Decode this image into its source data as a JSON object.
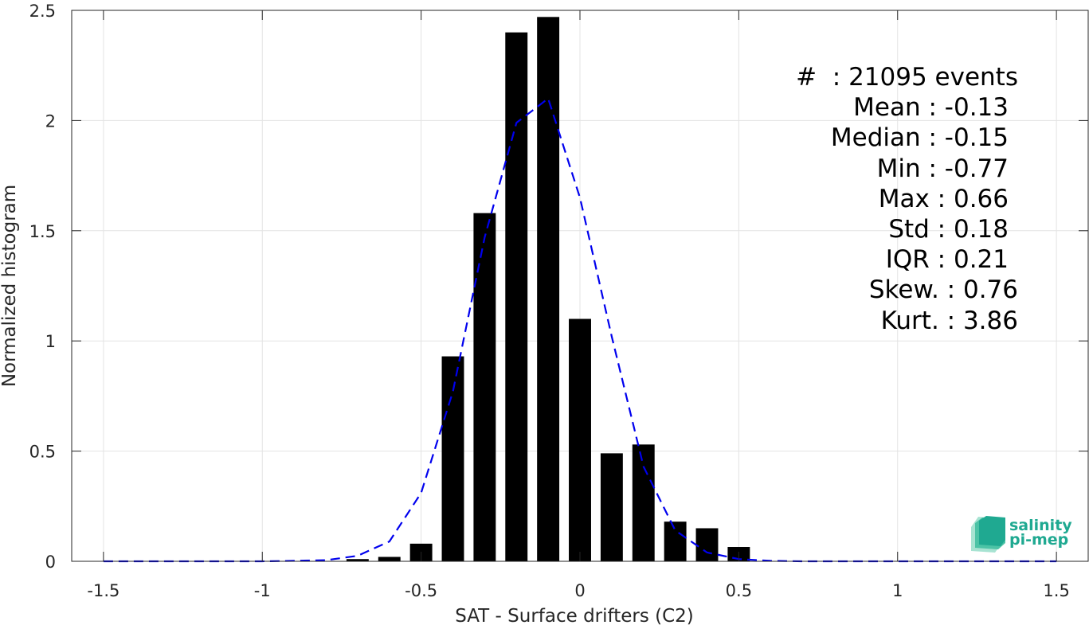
{
  "chart_data": {
    "type": "bar",
    "xlabel": "SAT - Surface drifters (C2)",
    "ylabel": "Normalized histogram",
    "xlim": [
      -1.6,
      1.6
    ],
    "ylim": [
      0,
      2.5
    ],
    "xticks": [
      -1.5,
      -1,
      -0.5,
      0,
      0.5,
      1,
      1.5
    ],
    "xtick_labels": [
      "-1.5",
      "-1",
      "-0.5",
      "0",
      "0.5",
      "1",
      "1.5"
    ],
    "yticks": [
      0,
      0.5,
      1,
      1.5,
      2,
      2.5
    ],
    "ytick_labels": [
      "0",
      "0.5",
      "1",
      "1.5",
      "2",
      "2.5"
    ],
    "grid": true,
    "bar_width": 0.07,
    "bars": {
      "x": [
        -0.7,
        -0.6,
        -0.5,
        -0.4,
        -0.3,
        -0.2,
        -0.1,
        0.0,
        0.1,
        0.2,
        0.3,
        0.4,
        0.5
      ],
      "values": [
        0.01,
        0.02,
        0.08,
        0.93,
        1.58,
        2.4,
        2.47,
        1.1,
        0.49,
        0.53,
        0.18,
        0.15,
        0.065
      ],
      "color": "#000000"
    },
    "fit": {
      "style": "dashed",
      "color": "#0000ee",
      "x": [
        -1.5,
        -1.4,
        -1.3,
        -1.2,
        -1.1,
        -1.0,
        -0.9,
        -0.8,
        -0.7,
        -0.6,
        -0.5,
        -0.4,
        -0.3,
        -0.2,
        -0.1,
        0.0,
        0.1,
        0.2,
        0.3,
        0.4,
        0.5,
        0.6,
        0.7,
        0.8,
        0.9,
        1.0,
        1.1,
        1.2,
        1.3,
        1.4,
        1.5
      ],
      "y": [
        0,
        0,
        0,
        0,
        0,
        0,
        0.002,
        0.005,
        0.025,
        0.09,
        0.31,
        0.77,
        1.47,
        1.99,
        2.1,
        1.65,
        1.02,
        0.43,
        0.14,
        0.04,
        0.01,
        0.002,
        0,
        0,
        0,
        0,
        0,
        0,
        0,
        0,
        0
      ]
    }
  },
  "stats": [
    "#  : 21095 events",
    "Mean : -0.13",
    "Median : -0.15",
    "Min : -0.77",
    "Max : 0.66",
    "Std : 0.18",
    "IQR : 0.21",
    "Skew. : 0.76",
    "Kurt. : 3.86"
  ],
  "logo": {
    "line1": "salinity",
    "line2": "pi-mep"
  }
}
